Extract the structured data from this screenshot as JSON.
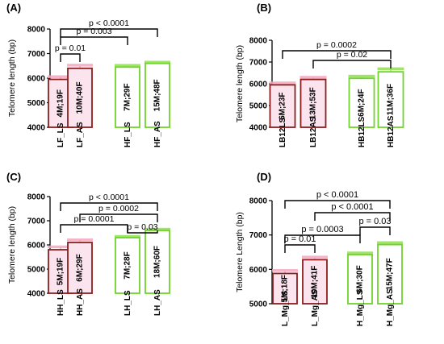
{
  "colors": {
    "low": "#8b1e1e",
    "high": "#6fd42b",
    "low_fill": "#fce4ee",
    "high_fill": "#ffffff",
    "error_low": "#f4a7c0",
    "error_high": "#8fe04f"
  },
  "chart_data": [
    {
      "panel": "(A)",
      "type": "bar",
      "ylabel": "Telomere length (bp)",
      "ylim": [
        4000,
        8000
      ],
      "yticks": [
        4000,
        5000,
        6000,
        7000,
        8000
      ],
      "categories": [
        "LF_LS",
        "LF_AS",
        "HF_LS",
        "HF_AS"
      ],
      "values": [
        5950,
        6400,
        6450,
        6600
      ],
      "errors": [
        100,
        120,
        60,
        40
      ],
      "bar_labels": [
        "4M;19F",
        "10M;40F",
        "7M;29F",
        "15M;48F"
      ],
      "groups": [
        "low",
        "low",
        "high",
        "high"
      ],
      "comparisons": [
        {
          "from": 0,
          "to": 1,
          "label": "p = 0.01"
        },
        {
          "from": 0,
          "to": 2,
          "label": "p = 0.003"
        },
        {
          "from": 0,
          "to": 3,
          "label": "p < 0.0001"
        }
      ]
    },
    {
      "panel": "(B)",
      "type": "bar",
      "ylabel": "Telomere length (bp)",
      "ylim": [
        4000,
        8000
      ],
      "yticks": [
        4000,
        5000,
        6000,
        7000,
        8000
      ],
      "categories": [
        "LB12LS",
        "LB12AS",
        "HB12LS",
        "HB12AS"
      ],
      "values": [
        5950,
        6200,
        6250,
        6550
      ],
      "errors": [
        80,
        90,
        90,
        130
      ],
      "bar_labels": [
        "6M;23F",
        "13M;53F",
        "6M;24F",
        "11M;36F"
      ],
      "groups": [
        "low",
        "low",
        "high",
        "high"
      ],
      "comparisons": [
        {
          "from": 1,
          "to": 3,
          "label": "p = 0.02"
        },
        {
          "from": 0,
          "to": 3,
          "label": "p = 0.0002"
        }
      ]
    },
    {
      "panel": "(C)",
      "type": "bar",
      "ylabel": "Telomere length (bp)",
      "ylim": [
        4000,
        8000
      ],
      "yticks": [
        4000,
        5000,
        6000,
        7000,
        8000
      ],
      "categories": [
        "HH_LS",
        "HH_AS",
        "LH_LS",
        "LH_AS"
      ],
      "values": [
        5800,
        6100,
        6300,
        6600
      ],
      "errors": [
        110,
        100,
        40,
        40
      ],
      "bar_labels": [
        "5M;19F",
        "6M;29F",
        "7M;28F",
        "18M;60F"
      ],
      "groups": [
        "low",
        "low",
        "high",
        "high"
      ],
      "comparisons": [
        {
          "from": 2,
          "to": 3,
          "label": "p = 0.03"
        },
        {
          "from": 0,
          "to": 2,
          "label": "p = 0.0001"
        },
        {
          "from": 1,
          "to": 3,
          "label": "p = 0.0002"
        },
        {
          "from": 0,
          "to": 3,
          "label": "p < 0.0001"
        }
      ]
    },
    {
      "panel": "(D)",
      "type": "bar",
      "ylabel": "Telomere Length (bp)",
      "ylim": [
        5000,
        8000
      ],
      "yticks": [
        5000,
        6000,
        7000,
        8000
      ],
      "categories": [
        "L_Mg_LS",
        "L_Mg_AS",
        "H_Mg_LS",
        "H_Mg_AS"
      ],
      "values": [
        5880,
        6280,
        6430,
        6720
      ],
      "errors": [
        80,
        70,
        40,
        50
      ],
      "bar_labels": [
        "5M;18F",
        "10M;41F",
        "6M;30F",
        "15M;47F"
      ],
      "groups": [
        "low",
        "low",
        "high",
        "high"
      ],
      "comparisons": [
        {
          "from": 0,
          "to": 1,
          "label": "p = 0.01"
        },
        {
          "from": 2,
          "to": 3,
          "label": "p = 0.03"
        },
        {
          "from": 0,
          "to": 2,
          "label": "p = 0.0003"
        },
        {
          "from": 1,
          "to": 3,
          "label": "p < 0.0001"
        },
        {
          "from": 0,
          "to": 3,
          "label": "p < 0.0001"
        }
      ]
    }
  ]
}
